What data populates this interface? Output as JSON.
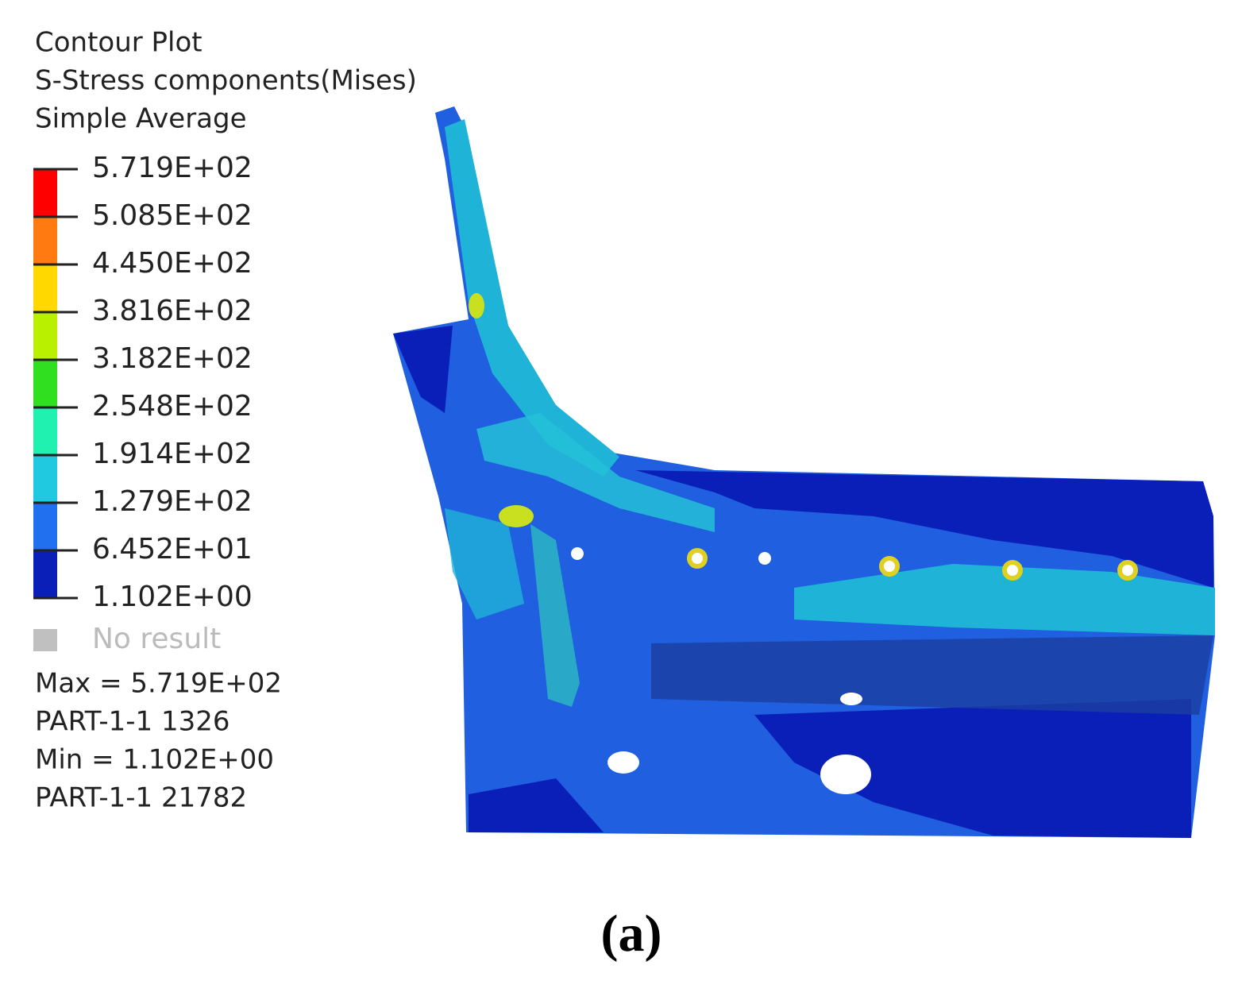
{
  "legend": {
    "title": [
      "Contour Plot",
      "S-Stress components(Mises)",
      "Simple Average"
    ],
    "levels": [
      "5.719E+02",
      "5.085E+02",
      "4.450E+02",
      "3.816E+02",
      "3.182E+02",
      "2.548E+02",
      "1.914E+02",
      "1.279E+02",
      "6.452E+01",
      "1.102E+00"
    ],
    "no_result": "No result"
  },
  "info": [
    "Max = 5.719E+02",
    "PART-1-1 1326",
    "Min = 1.102E+00",
    "PART-1-1 21782"
  ],
  "caption": "(a)"
}
